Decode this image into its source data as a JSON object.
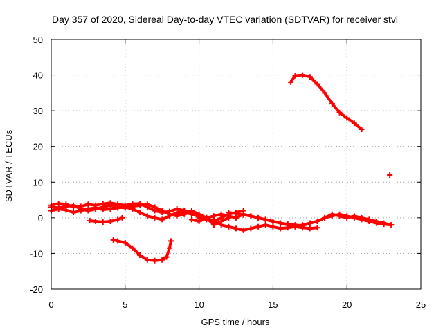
{
  "chart_data": {
    "type": "scatter",
    "title": "Day 357 of 2020, Sidereal Day-to-day VTEC variation (SDTVAR) for receiver stvi",
    "xlabel": "GPS time / hours",
    "ylabel": "SDTVAR / TECUs",
    "xlim": [
      0,
      25
    ],
    "ylim": [
      -20,
      50
    ],
    "xticks": [
      0,
      5,
      10,
      15,
      20,
      25
    ],
    "yticks": [
      -20,
      -10,
      0,
      10,
      20,
      30,
      40,
      50
    ],
    "grid": true,
    "marker": "+",
    "color": "#ff0000",
    "series": [
      {
        "name": "track-a",
        "x": [
          0,
          0.5,
          1,
          1.5,
          2,
          2.5,
          3,
          3.5,
          4,
          4.5,
          5,
          5.5,
          6,
          6.5,
          7,
          7.5,
          8,
          8.5,
          9,
          9.5,
          10,
          10.5,
          11,
          11.5,
          12,
          12.5,
          13
        ],
        "y": [
          3.5,
          4,
          3.8,
          3,
          3.2,
          3.8,
          3.5,
          3.9,
          4.2,
          3.8,
          3.5,
          3.9,
          4,
          3,
          2,
          1.5,
          1.8,
          2.5,
          2,
          1.5,
          0,
          -0.5,
          -1,
          0,
          1,
          1.5,
          2
        ]
      },
      {
        "name": "track-b",
        "x": [
          0,
          0.5,
          1,
          1.5,
          2,
          2.5,
          3,
          3.5,
          4,
          4.5,
          5,
          5.5,
          6,
          6.5,
          7,
          7.5,
          8,
          8.5,
          9
        ],
        "y": [
          2,
          2.5,
          2.2,
          1.5,
          2,
          2.5,
          2.8,
          2.3,
          2.5,
          2.8,
          3,
          2.5,
          1.5,
          0.5,
          0,
          -0.5,
          0.5,
          1.5,
          2
        ]
      },
      {
        "name": "track-c",
        "x": [
          0,
          0.5,
          1,
          1.5,
          2,
          2.5,
          3,
          3.5,
          4,
          4.5,
          5,
          5.5,
          6,
          6.5,
          7,
          7.5,
          8,
          8.5,
          9,
          9.5,
          10,
          10.5,
          11,
          11.5,
          12
        ],
        "y": [
          3,
          2.8,
          3.2,
          3.5,
          2.5,
          2,
          2.5,
          3,
          3.5,
          3,
          2.8,
          3.2,
          3.5,
          3.8,
          3,
          2,
          1,
          0.5,
          1,
          2,
          1,
          0,
          -2,
          -1,
          0
        ]
      },
      {
        "name": "track-d",
        "x": [
          2.6,
          3,
          3.5,
          4,
          4.5,
          4.8
        ],
        "y": [
          -0.8,
          -1,
          -1.2,
          -1,
          -0.5,
          0
        ]
      },
      {
        "name": "track-e",
        "x": [
          4.2,
          4.5,
          5,
          5.5,
          6,
          6.5,
          7,
          7.5,
          7.8,
          8,
          8.1
        ],
        "y": [
          -6.2,
          -6.5,
          -7,
          -8.5,
          -10.5,
          -11.8,
          -12,
          -11.8,
          -11,
          -8.5,
          -6.5
        ]
      },
      {
        "name": "track-f",
        "x": [
          8.5,
          9,
          9.5,
          10,
          10.5,
          11,
          11.5,
          12,
          12.5,
          13,
          13.5,
          14,
          14.5,
          15,
          15.5,
          16,
          16.5,
          17,
          17.5,
          18
        ],
        "y": [
          1,
          1.5,
          1,
          0.5,
          0,
          -1,
          -2,
          -2.5,
          -3,
          -3.5,
          -3,
          -2.5,
          -2,
          -2.5,
          -3,
          -2.8,
          -2.5,
          -2.8,
          -3,
          -2.8
        ]
      },
      {
        "name": "track-g",
        "x": [
          9.5,
          10,
          10.5,
          11,
          11.5,
          12,
          12.5,
          13,
          13.5,
          14,
          14.5,
          15,
          15.5,
          16,
          16.5,
          17,
          17.5,
          18,
          18.5,
          19,
          19.5,
          20,
          20.5,
          21,
          21.5,
          22,
          22.5,
          23
        ],
        "y": [
          -0.5,
          -1,
          0,
          0.5,
          1,
          0.5,
          0,
          1,
          0.5,
          0,
          -0.5,
          -1,
          -1.5,
          -2,
          -2.5,
          -2,
          -1.5,
          -1,
          0,
          1,
          0.5,
          0,
          0.5,
          0,
          -0.5,
          -1,
          -1.5,
          -2
        ]
      },
      {
        "name": "track-h",
        "x": [
          12,
          12.5,
          13,
          13.5,
          14,
          14.5,
          15,
          15.5,
          16,
          16.5,
          17,
          17.5,
          18,
          18.5,
          19,
          19.5,
          20,
          20.5,
          21,
          21.5,
          22,
          22.5,
          23
        ],
        "y": [
          1.5,
          1.2,
          0.8,
          0.5,
          0,
          -0.5,
          -1,
          -1.5,
          -1.8,
          -2,
          -2.2,
          -1.5,
          -1,
          0,
          0.5,
          1,
          0.5,
          0,
          -0.5,
          -1,
          -1.5,
          -1.8,
          -2
        ]
      },
      {
        "name": "track-i",
        "x": [
          16.2,
          16.5,
          17,
          17.5,
          18,
          18.5,
          19,
          19.5,
          20,
          20.5,
          21
        ],
        "y": [
          38,
          39.8,
          40,
          39.5,
          37.5,
          35,
          32,
          29.5,
          28,
          26.5,
          24.8
        ]
      },
      {
        "name": "track-j",
        "x": [
          22.9
        ],
        "y": [
          12
        ]
      }
    ]
  }
}
